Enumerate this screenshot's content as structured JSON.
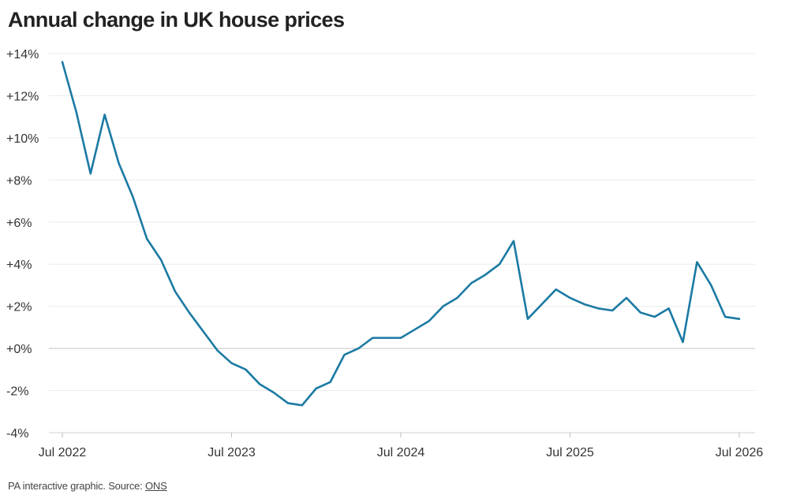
{
  "chart_data": {
    "type": "line",
    "title": "Annual change in UK house prices",
    "xlabel": "",
    "ylabel": "",
    "x_tick_labels": [
      "Jul 2022",
      "Jul 2023",
      "Jul 2024",
      "Jul 2025",
      "Jul 2026"
    ],
    "y_tick_labels": [
      "+14%",
      "+12%",
      "+10%",
      "+8%",
      "+6%",
      "+4%",
      "+2%",
      "+0%",
      "-2%",
      "-4%"
    ],
    "y_ticks": [
      14,
      12,
      10,
      8,
      6,
      4,
      2,
      0,
      -2,
      -4
    ],
    "ylim": [
      -4,
      14
    ],
    "xlim": [
      "2022-07",
      "2026-07"
    ],
    "grid": true,
    "line_color": "#1b7aa3",
    "series": [
      {
        "x": [
          "2022-07",
          "2022-08",
          "2022-09",
          "2022-10",
          "2022-11",
          "2022-12",
          "2023-01",
          "2023-02",
          "2023-03",
          "2023-04",
          "2023-05",
          "2023-06",
          "2023-07",
          "2023-08",
          "2023-09",
          "2023-10",
          "2023-11",
          "2023-12",
          "2024-01",
          "2024-02",
          "2024-03",
          "2024-04",
          "2024-05",
          "2024-06",
          "2024-07",
          "2024-08",
          "2024-09",
          "2024-10",
          "2024-11",
          "2024-12",
          "2025-01",
          "2025-02",
          "2025-03",
          "2025-04",
          "2025-05",
          "2025-06",
          "2025-07",
          "2025-08",
          "2025-09",
          "2025-10",
          "2025-11",
          "2025-12",
          "2026-01",
          "2026-02",
          "2026-03",
          "2026-04",
          "2026-05",
          "2026-06",
          "2026-07"
        ],
        "values": [
          13.6,
          11.2,
          8.3,
          11.1,
          8.8,
          7.2,
          5.2,
          4.2,
          2.7,
          1.7,
          0.8,
          -0.1,
          -0.7,
          -1.0,
          -1.7,
          -2.1,
          -2.6,
          -2.7,
          -1.9,
          -1.6,
          -0.3,
          0.0,
          0.5,
          0.5,
          0.5,
          0.9,
          1.3,
          2.0,
          2.4,
          3.1,
          3.5,
          4.0,
          5.1,
          1.4,
          2.1,
          2.8,
          2.4,
          2.1,
          1.9,
          1.8,
          2.4,
          1.7,
          1.5,
          1.9,
          0.3,
          4.1,
          3.0,
          1.5,
          1.4
        ]
      }
    ]
  },
  "footer": {
    "prefix": "PA interactive graphic. Source: ",
    "source": "ONS"
  }
}
